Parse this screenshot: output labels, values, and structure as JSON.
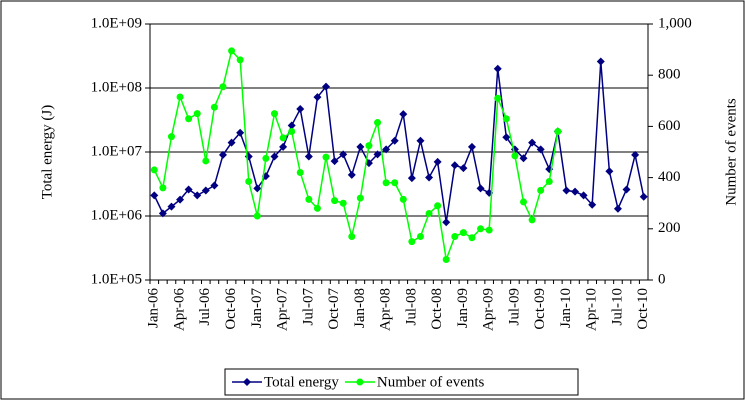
{
  "chart_data": {
    "type": "line",
    "categories": [
      "Jan-06",
      null,
      null,
      "Apr-06",
      null,
      null,
      "Jul-06",
      null,
      null,
      "Oct-06",
      null,
      null,
      "Jan-07",
      null,
      null,
      "Apr-07",
      null,
      null,
      "Jul-07",
      null,
      null,
      "Oct-07",
      null,
      null,
      "Jan-08",
      null,
      null,
      "Apr-08",
      null,
      null,
      "Jul-08",
      null,
      null,
      "Oct-08",
      null,
      null,
      "Jan-09",
      null,
      null,
      "Apr-09",
      null,
      null,
      "Jul-09",
      null,
      null,
      "Oct-09",
      null,
      null,
      "Jan-10",
      null,
      null,
      "Apr-10",
      null,
      null,
      "Jul-10",
      null,
      null,
      "Oct-10"
    ],
    "series": [
      {
        "name": "Total energy",
        "color": "#000080",
        "marker": "diamond",
        "axis": "y",
        "values": [
          2100000,
          1100000,
          1400000,
          1800000,
          2600000,
          2100000,
          2500000,
          3000000,
          9000000,
          14000000,
          20000000,
          8500000,
          2700000,
          4200000,
          8500000,
          12000000,
          26000000,
          47000000,
          8500000,
          72000000,
          105000000,
          7200000,
          9200000,
          4400000,
          12000000,
          6700000,
          9200000,
          11000000,
          15000000,
          39000000,
          3900000,
          15000000,
          4000000,
          7000000,
          800000,
          6200000,
          5600000,
          12000000,
          2700000,
          2300000,
          200000000,
          17000000,
          11000000,
          8000000,
          14000000,
          11000000,
          5400000,
          21000000,
          2500000,
          2400000,
          2100000,
          1500000,
          260000000,
          5000000,
          1300000,
          2600000,
          9000000,
          2000000
        ]
      },
      {
        "name": "Number of events",
        "color": "#00ff00",
        "marker": "circle",
        "axis": "y2",
        "values": [
          430,
          360,
          560,
          715,
          630,
          650,
          465,
          675,
          755,
          895,
          860,
          385,
          250,
          475,
          650,
          555,
          580,
          420,
          315,
          280,
          480,
          310,
          300,
          170,
          320,
          525,
          615,
          380,
          380,
          315,
          150,
          170,
          260,
          290,
          80,
          170,
          185,
          165,
          200,
          195,
          710,
          630,
          485,
          305,
          235,
          350,
          385,
          580,
          null,
          null,
          null,
          null,
          null,
          null,
          null,
          null,
          null,
          null
        ]
      }
    ],
    "ylabel": "Total energy (J)",
    "y2label": "Number of events",
    "ylog": true,
    "ylim": [
      100000,
      1000000000
    ],
    "yticks": [
      {
        "value": 100000,
        "label": "1.0E+05"
      },
      {
        "value": 1000000,
        "label": "1.0E+06"
      },
      {
        "value": 10000000,
        "label": "1.0E+07"
      },
      {
        "value": 100000000,
        "label": "1.0E+08"
      },
      {
        "value": 1000000000,
        "label": "1.0E+09"
      }
    ],
    "y2lim": [
      0,
      1000
    ],
    "y2ticks": [
      0,
      200,
      400,
      600,
      800,
      {
        "value": 1000,
        "label": "1,000"
      }
    ],
    "grid": true,
    "legend": "bottom"
  }
}
